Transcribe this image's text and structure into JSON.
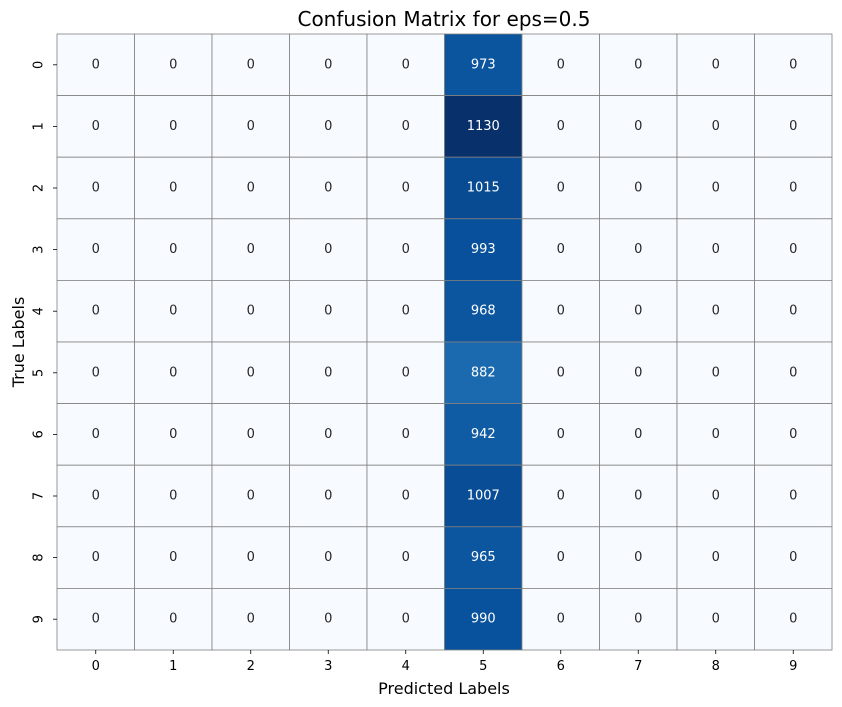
{
  "chart_data": {
    "type": "heatmap",
    "title": "Confusion Matrix for eps=0.5",
    "xlabel": "Predicted Labels",
    "ylabel": "True Labels",
    "x_categories": [
      "0",
      "1",
      "2",
      "3",
      "4",
      "5",
      "6",
      "7",
      "8",
      "9"
    ],
    "y_categories": [
      "0",
      "1",
      "2",
      "3",
      "4",
      "5",
      "6",
      "7",
      "8",
      "9"
    ],
    "values": [
      [
        0,
        0,
        0,
        0,
        0,
        973,
        0,
        0,
        0,
        0
      ],
      [
        0,
        0,
        0,
        0,
        0,
        1130,
        0,
        0,
        0,
        0
      ],
      [
        0,
        0,
        0,
        0,
        0,
        1015,
        0,
        0,
        0,
        0
      ],
      [
        0,
        0,
        0,
        0,
        0,
        993,
        0,
        0,
        0,
        0
      ],
      [
        0,
        0,
        0,
        0,
        0,
        968,
        0,
        0,
        0,
        0
      ],
      [
        0,
        0,
        0,
        0,
        0,
        882,
        0,
        0,
        0,
        0
      ],
      [
        0,
        0,
        0,
        0,
        0,
        942,
        0,
        0,
        0,
        0
      ],
      [
        0,
        0,
        0,
        0,
        0,
        1007,
        0,
        0,
        0,
        0
      ],
      [
        0,
        0,
        0,
        0,
        0,
        965,
        0,
        0,
        0,
        0
      ],
      [
        0,
        0,
        0,
        0,
        0,
        990,
        0,
        0,
        0,
        0
      ]
    ],
    "colormap": "Blues",
    "colorbar": false,
    "annotated": true,
    "cell_border_color": "#808080"
  }
}
